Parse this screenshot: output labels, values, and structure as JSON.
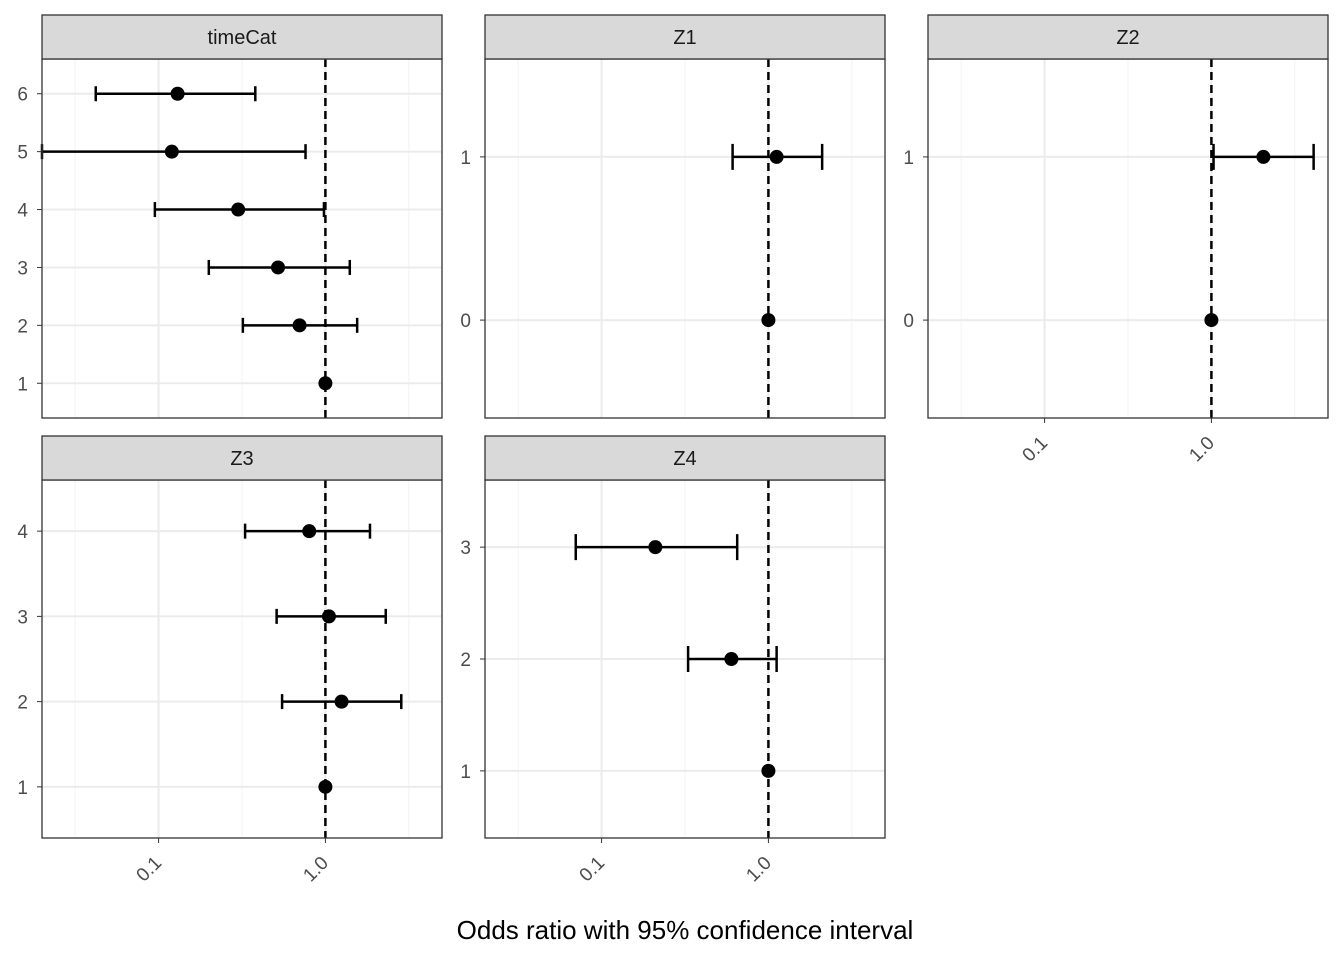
{
  "chart_data": {
    "type": "scatter",
    "xlabel": "Odds ratio with 95% confidence interval",
    "ylabel": "",
    "x_scale": "log10",
    "xlim": [
      0.02,
      5.0
    ],
    "x_ticks": [
      "0.1",
      "1.0"
    ],
    "x_tick_values": [
      0.1,
      1.0
    ],
    "reference_line": 1.0,
    "grid": true,
    "colors": {
      "point": "#000000",
      "strip_fill": "#d9d9d9",
      "strip_border": "#333333",
      "grid": "#ebebeb",
      "tick_label": "#4d4d4d"
    },
    "panels": [
      {
        "title": "timeCat",
        "categories": [
          "1",
          "2",
          "3",
          "4",
          "5",
          "6"
        ],
        "points": [
          {
            "category": "1",
            "estimate": 1.0,
            "lower": null,
            "upper": null
          },
          {
            "category": "2",
            "estimate": 0.7,
            "lower": 0.32,
            "upper": 1.55
          },
          {
            "category": "3",
            "estimate": 0.52,
            "lower": 0.2,
            "upper": 1.4
          },
          {
            "category": "4",
            "estimate": 0.3,
            "lower": 0.095,
            "upper": 0.98
          },
          {
            "category": "5",
            "estimate": 0.12,
            "lower": 0.02,
            "upper": 0.76
          },
          {
            "category": "6",
            "estimate": 0.13,
            "lower": 0.042,
            "upper": 0.38
          }
        ]
      },
      {
        "title": "Z1",
        "categories": [
          "0",
          "1"
        ],
        "points": [
          {
            "category": "0",
            "estimate": 1.0,
            "lower": null,
            "upper": null
          },
          {
            "category": "1",
            "estimate": 1.12,
            "lower": 0.61,
            "upper": 2.1
          }
        ]
      },
      {
        "title": "Z2",
        "categories": [
          "0",
          "1"
        ],
        "points": [
          {
            "category": "0",
            "estimate": 1.0,
            "lower": null,
            "upper": null
          },
          {
            "category": "1",
            "estimate": 2.05,
            "lower": 1.03,
            "upper": 4.1
          }
        ]
      },
      {
        "title": "Z3",
        "categories": [
          "1",
          "2",
          "3",
          "4"
        ],
        "points": [
          {
            "category": "1",
            "estimate": 1.0,
            "lower": null,
            "upper": null
          },
          {
            "category": "2",
            "estimate": 1.25,
            "lower": 0.55,
            "upper": 2.85
          },
          {
            "category": "3",
            "estimate": 1.05,
            "lower": 0.51,
            "upper": 2.3
          },
          {
            "category": "4",
            "estimate": 0.8,
            "lower": 0.33,
            "upper": 1.85
          }
        ]
      },
      {
        "title": "Z4",
        "categories": [
          "1",
          "2",
          "3"
        ],
        "points": [
          {
            "category": "1",
            "estimate": 1.0,
            "lower": null,
            "upper": null
          },
          {
            "category": "2",
            "estimate": 0.6,
            "lower": 0.33,
            "upper": 1.12
          },
          {
            "category": "3",
            "estimate": 0.21,
            "lower": 0.07,
            "upper": 0.65
          }
        ]
      }
    ]
  }
}
